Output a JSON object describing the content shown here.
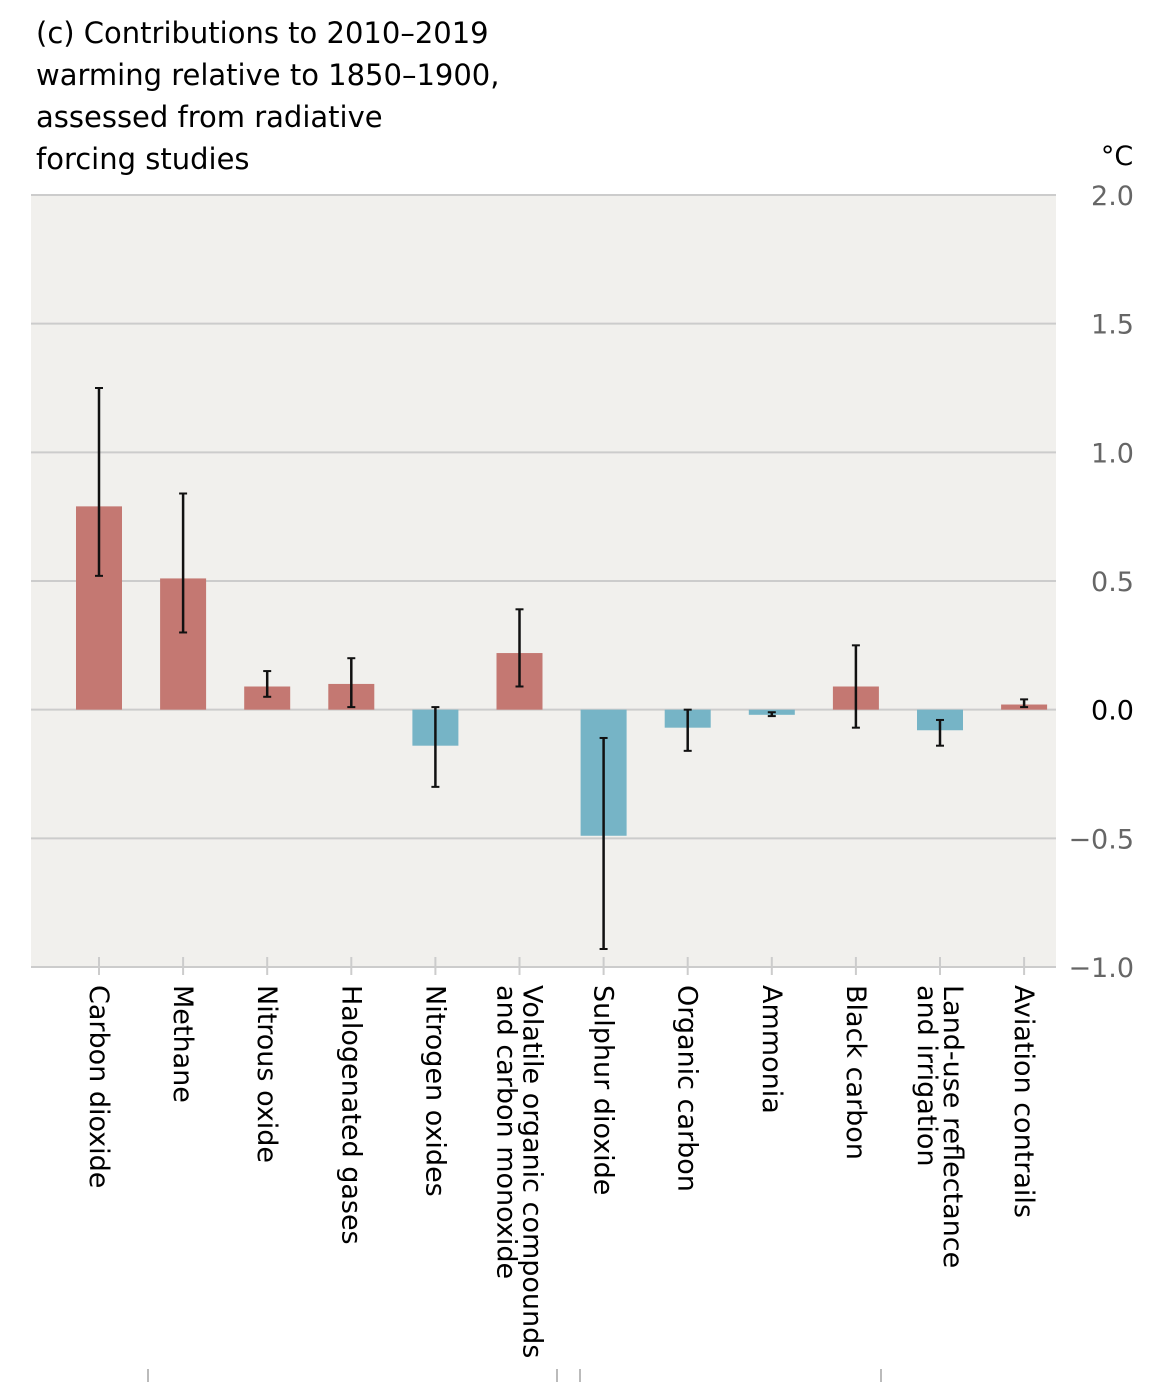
{
  "chart_data": {
    "type": "bar",
    "title": "(c) Contributions to 2010–2019 warming relative to 1850–1900, assessed from radiative forcing studies",
    "title_lines": [
      "(c) Contributions to 2010–2019",
      "warming relative to 1850–1900,",
      "assessed from radiative",
      "forcing studies"
    ],
    "ylabel": "°C",
    "xlabel": "",
    "ylim": [
      -1.0,
      2.0
    ],
    "yticks": [
      2.0,
      1.5,
      1.0,
      0.5,
      0.0,
      -0.5,
      -1.0
    ],
    "ytick_labels": [
      "2.0",
      "1.5",
      "1.0",
      "0.5",
      "0.0",
      "−0.5",
      "−1.0"
    ],
    "y_axis_position": "right",
    "grid": true,
    "legend": "none",
    "colors": {
      "warming": "#c47872",
      "cooling": "#76b4c6",
      "plot_background": "#f1f0ed",
      "gridline": "#cccccc",
      "errorbar": "#111111",
      "tick_label": "#666666"
    },
    "categories": [
      [
        "Carbon dioxide"
      ],
      [
        "Methane"
      ],
      [
        "Nitrous oxide"
      ],
      [
        "Halogenated gases"
      ],
      [
        "Nitrogen oxides"
      ],
      [
        "Volatile organic compounds",
        "and carbon monoxide"
      ],
      [
        "Sulphur dioxide"
      ],
      [
        "Organic carbon"
      ],
      [
        "Ammonia"
      ],
      [
        "Black carbon"
      ],
      [
        "Land-use reflectance",
        "and irrigation"
      ],
      [
        "Aviation contrails"
      ]
    ],
    "values": [
      0.79,
      0.51,
      0.09,
      0.1,
      -0.14,
      0.22,
      -0.49,
      -0.07,
      -0.02,
      0.09,
      -0.08,
      0.02
    ],
    "error_low": [
      0.52,
      0.3,
      0.05,
      0.01,
      -0.3,
      0.09,
      -0.93,
      -0.16,
      -0.025,
      -0.07,
      -0.14,
      0.01
    ],
    "error_high": [
      1.25,
      0.84,
      0.15,
      0.2,
      0.01,
      0.39,
      -0.11,
      0.0,
      -0.01,
      0.25,
      -0.04,
      0.04
    ]
  }
}
